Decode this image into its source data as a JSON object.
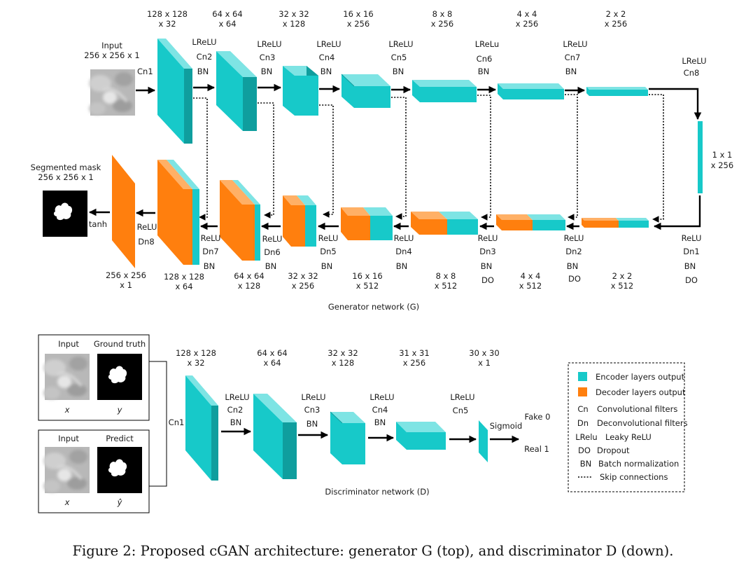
{
  "figure_caption": "Figure 2: Proposed cGAN architecture: generator G (top), and discriminator D (down).",
  "colors": {
    "encoder": "#17c9c9",
    "decoder": "#ff7f0e"
  },
  "generator": {
    "title": "Generator network (G)",
    "input_label": "Input",
    "input_dims": "256 x 256 x 1",
    "first_conv": "Cn1",
    "encoder_dims": [
      {
        "size": "128 x 128",
        "ch": "x 32"
      },
      {
        "size": "64 x 64",
        "ch": "x 64"
      },
      {
        "size": "32 x 32",
        "ch": "x 128"
      },
      {
        "size": "16 x 16",
        "ch": "x 256"
      },
      {
        "size": "8 x 8",
        "ch": "x 256"
      },
      {
        "size": "4 x 4",
        "ch": "x 256"
      },
      {
        "size": "2 x 2",
        "ch": "x 256"
      }
    ],
    "encoder_ops": [
      {
        "act": "LReLU",
        "conv": "Cn2",
        "bn": "BN"
      },
      {
        "act": "LReLU",
        "conv": "Cn3",
        "bn": "BN"
      },
      {
        "act": "LReLU",
        "conv": "Cn4",
        "bn": "BN"
      },
      {
        "act": "LReLU",
        "conv": "Cn5",
        "bn": "BN"
      },
      {
        "act": "LReLu",
        "conv": "Cn6",
        "bn": "BN"
      },
      {
        "act": "LReLU",
        "conv": "Cn7",
        "bn": "BN"
      },
      {
        "act": "LReLU",
        "conv": "Cn8",
        "bn": ""
      }
    ],
    "bottleneck": {
      "size": "1 x 1",
      "ch": "x 256"
    },
    "decoder_ops": [
      {
        "act": "ReLU",
        "deconv": "Dn1",
        "bn": "BN",
        "do": "DO"
      },
      {
        "act": "ReLU",
        "deconv": "Dn2",
        "bn": "BN",
        "do": "DO"
      },
      {
        "act": "ReLU",
        "deconv": "Dn3",
        "bn": "BN",
        "do": "DO"
      },
      {
        "act": "ReLU",
        "deconv": "Dn4",
        "bn": "BN",
        "do": ""
      },
      {
        "act": "ReLU",
        "deconv": "Dn5",
        "bn": "BN",
        "do": ""
      },
      {
        "act": "ReLU",
        "deconv": "Dn6",
        "bn": "BN",
        "do": ""
      },
      {
        "act": "ReLU",
        "deconv": "Dn7",
        "bn": "BN",
        "do": ""
      },
      {
        "act": "ReLU",
        "deconv": "Dn8",
        "bn": "",
        "do": ""
      }
    ],
    "decoder_dims": [
      {
        "size": "2 x 2",
        "ch": "x 512"
      },
      {
        "size": "4 x 4",
        "ch": "x 512"
      },
      {
        "size": "8 x 8",
        "ch": "x 512"
      },
      {
        "size": "16 x 16",
        "ch": "x 512"
      },
      {
        "size": "32 x 32",
        "ch": "x 256"
      },
      {
        "size": "64 x 64",
        "ch": "x 128"
      },
      {
        "size": "128 x 128",
        "ch": "x 64"
      },
      {
        "size": "256 x 256",
        "ch": "x 1"
      }
    ],
    "output_label": "Segmented mask",
    "output_dims": "256 x 256 x 1",
    "output_act": "tanh"
  },
  "discriminator": {
    "title": "Discriminator network (D)",
    "pair1": {
      "left": "Input",
      "right": "Ground truth",
      "left_var": "x",
      "right_var": "y"
    },
    "pair2": {
      "left": "Input",
      "right": "Predict",
      "left_var": "x",
      "right_var": "ŷ"
    },
    "first_conv": "Cn1",
    "dims": [
      {
        "size": "128 x 128",
        "ch": "x 32"
      },
      {
        "size": "64 x 64",
        "ch": "x 64"
      },
      {
        "size": "32 x 32",
        "ch": "x 128"
      },
      {
        "size": "31 x 31",
        "ch": "x 256"
      },
      {
        "size": "30 x 30",
        "ch": "x 1"
      }
    ],
    "ops": [
      {
        "act": "LReLU",
        "conv": "Cn2",
        "bn": "BN"
      },
      {
        "act": "LReLU",
        "conv": "Cn3",
        "bn": "BN"
      },
      {
        "act": "LReLU",
        "conv": "Cn4",
        "bn": "BN"
      },
      {
        "act": "LReLU",
        "conv": "Cn5",
        "bn": ""
      }
    ],
    "final_act": "Sigmoid",
    "fake": "Fake 0",
    "real": "Real 1"
  },
  "legend": {
    "encoder": "Encoder layers output",
    "decoder": "Decoder layers output",
    "items": [
      {
        "key": "Cn",
        "desc": "Convolutional filters"
      },
      {
        "key": "Dn",
        "desc": "Deconvolutional filters"
      },
      {
        "key": "LRelu",
        "desc": "Leaky ReLU"
      },
      {
        "key": "DO",
        "desc": "Dropout"
      },
      {
        "key": "BN",
        "desc": "Batch normalization"
      }
    ],
    "skip": "Skip connections"
  }
}
